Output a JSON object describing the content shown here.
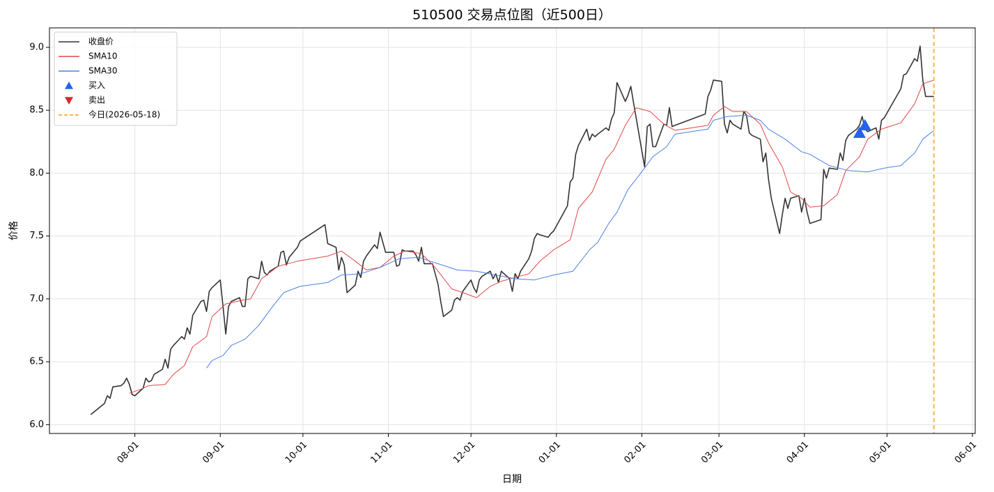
{
  "chart_data": {
    "type": "line",
    "title": "510500 交易点位图（近500日）",
    "x_label": "日期",
    "y_label": "价格",
    "x": [
      "07-16",
      "07-21",
      "07-22",
      "07-23",
      "07-24",
      "07-27",
      "07-28",
      "07-29",
      "07-30",
      "07-31",
      "08-01",
      "08-04",
      "08-05",
      "08-06",
      "08-07",
      "08-08",
      "08-11",
      "08-12",
      "08-13",
      "08-14",
      "08-15",
      "08-18",
      "08-19",
      "08-20",
      "08-21",
      "08-22",
      "08-25",
      "08-26",
      "08-27",
      "08-28",
      "08-29",
      "09-01",
      "09-02",
      "09-03",
      "09-04",
      "09-05",
      "09-08",
      "09-09",
      "09-10",
      "09-11",
      "09-12",
      "09-15",
      "09-16",
      "09-17",
      "09-18",
      "09-19",
      "09-22",
      "09-23",
      "09-24",
      "09-25",
      "09-26",
      "09-29",
      "09-30",
      "10-09",
      "10-10",
      "10-13",
      "10-14",
      "10-15",
      "10-16",
      "10-17",
      "10-20",
      "10-21",
      "10-22",
      "10-23",
      "10-24",
      "10-27",
      "10-28",
      "10-29",
      "10-30",
      "10-31",
      "11-03",
      "11-04",
      "11-05",
      "11-06",
      "11-07",
      "11-10",
      "11-11",
      "11-12",
      "11-13",
      "11-14",
      "11-17",
      "11-18",
      "11-19",
      "11-20",
      "11-21",
      "11-24",
      "11-25",
      "11-26",
      "11-27",
      "11-28",
      "12-01",
      "12-02",
      "12-03",
      "12-04",
      "12-05",
      "12-08",
      "12-09",
      "12-10",
      "12-11",
      "12-12",
      "12-15",
      "12-16",
      "12-17",
      "12-18",
      "12-19",
      "12-22",
      "12-23",
      "12-24",
      "12-25",
      "12-26",
      "12-29",
      "12-30",
      "12-31",
      "01-05",
      "01-06",
      "01-07",
      "01-08",
      "01-09",
      "01-12",
      "01-13",
      "01-14",
      "01-15",
      "01-16",
      "01-19",
      "01-20",
      "01-21",
      "01-22",
      "01-23",
      "01-26",
      "01-27",
      "01-28",
      "01-29",
      "02-02",
      "02-03",
      "02-04",
      "02-05",
      "02-06",
      "02-09",
      "02-10",
      "02-11",
      "02-12",
      "02-13",
      "02-24",
      "02-25",
      "02-26",
      "02-27",
      "03-02",
      "03-03",
      "03-04",
      "03-05",
      "03-06",
      "03-09",
      "03-10",
      "03-11",
      "03-12",
      "03-13",
      "03-16",
      "03-17",
      "03-18",
      "03-19",
      "03-20",
      "03-23",
      "03-24",
      "03-25",
      "03-26",
      "03-27",
      "03-30",
      "03-31",
      "04-01",
      "04-02",
      "04-03",
      "04-07",
      "04-08",
      "04-09",
      "04-10",
      "04-13",
      "04-14",
      "04-15",
      "04-16",
      "04-17",
      "04-20",
      "04-21",
      "04-22",
      "04-23",
      "04-24",
      "04-27",
      "04-28",
      "04-29",
      "04-30",
      "05-06",
      "05-07",
      "05-08",
      "05-11",
      "05-12",
      "05-13",
      "05-14",
      "05-15",
      "05-18"
    ],
    "series": [
      {
        "name": "收盘价",
        "color": "#333333",
        "width": 1.6,
        "values": [
          6.08,
          6.17,
          6.23,
          6.21,
          6.3,
          6.31,
          6.33,
          6.37,
          6.32,
          6.24,
          6.23,
          6.29,
          6.37,
          6.34,
          6.35,
          6.4,
          6.44,
          6.52,
          6.45,
          6.6,
          6.63,
          6.7,
          6.68,
          6.77,
          6.72,
          6.87,
          6.98,
          6.99,
          6.9,
          7.06,
          7.09,
          7.15,
          6.94,
          6.72,
          6.94,
          6.98,
          7.01,
          6.94,
          6.94,
          7.16,
          7.18,
          7.16,
          7.3,
          7.21,
          7.19,
          7.22,
          7.26,
          7.37,
          7.38,
          7.27,
          7.33,
          7.41,
          7.46,
          7.59,
          7.44,
          7.41,
          7.23,
          7.33,
          7.27,
          7.05,
          7.11,
          7.22,
          7.17,
          7.3,
          7.34,
          7.43,
          7.4,
          7.53,
          7.45,
          7.37,
          7.37,
          7.26,
          7.27,
          7.39,
          7.38,
          7.38,
          7.35,
          7.3,
          7.41,
          7.28,
          7.28,
          7.2,
          7.12,
          6.98,
          6.86,
          6.91,
          6.99,
          7.01,
          6.99,
          7.06,
          7.15,
          7.09,
          7.05,
          7.15,
          7.18,
          7.22,
          7.16,
          7.2,
          7.13,
          7.22,
          7.16,
          7.06,
          7.2,
          7.16,
          7.22,
          7.32,
          7.38,
          7.48,
          7.52,
          7.51,
          7.49,
          7.52,
          7.54,
          7.74,
          7.93,
          7.96,
          8.15,
          8.22,
          8.35,
          8.26,
          8.31,
          8.29,
          8.31,
          8.36,
          8.34,
          8.43,
          8.48,
          8.72,
          8.57,
          8.62,
          8.69,
          8.56,
          8.05,
          8.37,
          8.39,
          8.21,
          8.21,
          8.39,
          8.38,
          8.52,
          8.37,
          8.38,
          8.47,
          8.61,
          8.66,
          8.74,
          8.73,
          8.39,
          8.32,
          8.42,
          8.39,
          8.35,
          8.49,
          8.46,
          8.32,
          8.3,
          8.27,
          8.09,
          8.16,
          7.95,
          7.8,
          7.52,
          7.67,
          7.8,
          7.72,
          7.8,
          7.82,
          7.69,
          7.8,
          7.69,
          7.6,
          7.63,
          8.03,
          7.96,
          8.04,
          8.03,
          8.16,
          8.1,
          8.26,
          8.3,
          8.35,
          8.38,
          8.45,
          8.35,
          8.33,
          8.36,
          8.27,
          8.42,
          8.44,
          8.67,
          8.78,
          8.79,
          8.91,
          8.89,
          9.01,
          8.74,
          8.61,
          8.61
        ]
      },
      {
        "name": "SMA10",
        "color": "#e04646",
        "width": 1,
        "x": [
          "07-30",
          "08-03",
          "08-06",
          "08-12",
          "08-15",
          "08-19",
          "08-22",
          "08-27",
          "08-29",
          "09-03",
          "09-09",
          "09-12",
          "09-16",
          "09-22",
          "09-29",
          "10-10",
          "10-15",
          "10-20",
          "10-24",
          "10-29",
          "11-03",
          "11-07",
          "11-13",
          "11-18",
          "11-24",
          "11-28",
          "12-03",
          "12-08",
          "12-12",
          "12-17",
          "12-22",
          "12-26",
          "12-31",
          "01-06",
          "01-09",
          "01-14",
          "01-19",
          "01-22",
          "01-26",
          "01-30",
          "02-04",
          "02-09",
          "02-13",
          "02-25",
          "02-27",
          "03-03",
          "03-06",
          "03-11",
          "03-16",
          "03-19",
          "03-24",
          "03-27",
          "03-31",
          "04-03",
          "04-08",
          "04-13",
          "04-16",
          "04-21",
          "04-24",
          "04-29",
          "05-06",
          "05-11",
          "05-14",
          "05-18"
        ],
        "values": [
          6.25,
          6.28,
          6.31,
          6.32,
          6.4,
          6.47,
          6.62,
          6.7,
          6.86,
          6.96,
          6.99,
          7.0,
          7.16,
          7.26,
          7.3,
          7.34,
          7.38,
          7.3,
          7.23,
          7.25,
          7.34,
          7.38,
          7.36,
          7.25,
          7.08,
          7.05,
          7.01,
          7.1,
          7.14,
          7.17,
          7.2,
          7.3,
          7.39,
          7.47,
          7.72,
          7.85,
          8.11,
          8.19,
          8.38,
          8.52,
          8.49,
          8.39,
          8.34,
          8.38,
          8.46,
          8.53,
          8.49,
          8.49,
          8.39,
          8.24,
          8.05,
          7.85,
          7.8,
          7.73,
          7.74,
          7.83,
          8.02,
          8.13,
          8.27,
          8.35,
          8.4,
          8.55,
          8.71,
          8.74
        ]
      },
      {
        "name": "SMA30",
        "color": "#4a80e8",
        "width": 1,
        "x": [
          "08-27",
          "08-29",
          "09-02",
          "09-05",
          "09-10",
          "09-15",
          "09-19",
          "09-24",
          "09-30",
          "10-10",
          "10-15",
          "10-22",
          "10-29",
          "11-05",
          "11-12",
          "11-19",
          "11-26",
          "12-03",
          "12-10",
          "12-17",
          "12-24",
          "12-31",
          "01-07",
          "01-13",
          "01-16",
          "01-20",
          "01-23",
          "01-27",
          "02-02",
          "02-05",
          "02-10",
          "02-13",
          "02-25",
          "02-27",
          "03-04",
          "03-11",
          "03-16",
          "03-19",
          "03-25",
          "03-31",
          "04-03",
          "04-10",
          "04-17",
          "04-24",
          "04-30",
          "05-06",
          "05-11",
          "05-14",
          "05-18"
        ],
        "values": [
          6.45,
          6.51,
          6.55,
          6.63,
          6.68,
          6.79,
          6.91,
          7.05,
          7.1,
          7.13,
          7.19,
          7.2,
          7.25,
          7.32,
          7.33,
          7.28,
          7.23,
          7.22,
          7.19,
          7.16,
          7.15,
          7.19,
          7.22,
          7.39,
          7.45,
          7.6,
          7.69,
          7.87,
          8.04,
          8.13,
          8.21,
          8.31,
          8.35,
          8.42,
          8.45,
          8.46,
          8.42,
          8.35,
          8.27,
          8.17,
          8.15,
          8.06,
          8.02,
          8.01,
          8.04,
          8.06,
          8.16,
          8.27,
          8.34
        ]
      }
    ],
    "markers": [
      {
        "name": "买入",
        "color": "#2563eb",
        "direction": "up",
        "x": [
          "04-21",
          "04-23"
        ],
        "values": [
          8.32,
          8.38
        ]
      },
      {
        "name": "卖出",
        "color": "#dc2626",
        "direction": "down",
        "x": [],
        "values": []
      }
    ],
    "today": {
      "label": "今日(2026-05-18)",
      "x": "05-18",
      "color": "#f2b84b"
    },
    "xlim": [
      "07-01",
      "06-02"
    ],
    "xticks": [
      "08-01",
      "09-01",
      "10-01",
      "11-01",
      "12-01",
      "01-01",
      "02-01",
      "03-01",
      "04-01",
      "05-01",
      "06-01"
    ],
    "ylim": [
      5.93,
      9.155
    ],
    "yticks": [
      {
        "value": 6,
        "label": "6.0"
      },
      6.5,
      {
        "value": 7,
        "label": "7.0"
      },
      7.5,
      {
        "value": 8,
        "label": "8.0"
      },
      8.5,
      {
        "value": 9,
        "label": "9.0"
      }
    ],
    "grid": true,
    "legend": "upper left"
  }
}
